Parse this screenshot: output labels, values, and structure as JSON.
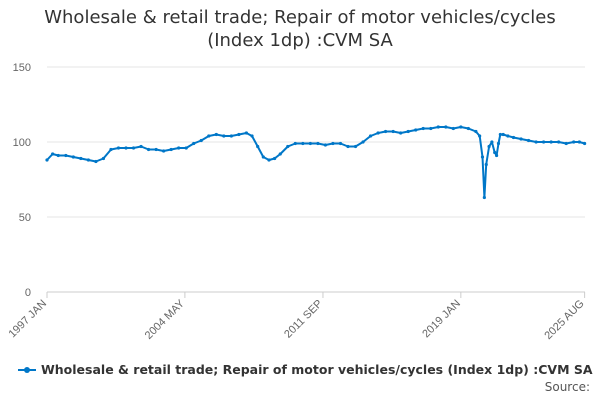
{
  "chart_data": {
    "type": "line",
    "title_line1": "Wholesale & retail trade; Repair of motor vehicles/cycles",
    "title_line2": "(Index 1dp) :CVM SA",
    "xlabel": "",
    "ylabel": "",
    "ylim": [
      0,
      150
    ],
    "yticks": [
      0,
      50,
      100,
      150
    ],
    "xlim": [
      1997.0,
      2025.6
    ],
    "xticks": [
      {
        "label": "1997 JAN",
        "x": 1997.0
      },
      {
        "label": "2004 MAY",
        "x": 2004.33
      },
      {
        "label": "2011 SEP",
        "x": 2011.67
      },
      {
        "label": "2019 JAN",
        "x": 2019.0
      },
      {
        "label": "2025 AUG",
        "x": 2025.58
      }
    ],
    "grid": true,
    "legend_position": "bottom",
    "color": "#0077c8",
    "series": [
      {
        "name": "Wholesale & retail trade; Repair of motor vehicles/cycles (Index 1dp) :CVM SA",
        "x": [
          1997.0,
          1997.3,
          1997.6,
          1998.0,
          1998.4,
          1998.8,
          1999.2,
          1999.6,
          2000.0,
          2000.4,
          2000.8,
          2001.2,
          2001.6,
          2002.0,
          2002.4,
          2002.8,
          2003.2,
          2003.6,
          2004.0,
          2004.4,
          2004.8,
          2005.2,
          2005.6,
          2006.0,
          2006.4,
          2006.8,
          2007.2,
          2007.6,
          2007.9,
          2008.2,
          2008.5,
          2008.8,
          2009.1,
          2009.4,
          2009.8,
          2010.2,
          2010.6,
          2011.0,
          2011.4,
          2011.8,
          2012.2,
          2012.6,
          2013.0,
          2013.4,
          2013.8,
          2014.2,
          2014.6,
          2015.0,
          2015.4,
          2015.8,
          2016.2,
          2016.6,
          2017.0,
          2017.4,
          2017.8,
          2018.2,
          2018.6,
          2019.0,
          2019.4,
          2019.8,
          2020.0,
          2020.15,
          2020.25,
          2020.35,
          2020.5,
          2020.65,
          2020.8,
          2020.9,
          2021.0,
          2021.1,
          2021.25,
          2021.5,
          2021.8,
          2022.2,
          2022.6,
          2023.0,
          2023.4,
          2023.8,
          2024.2,
          2024.6,
          2025.0,
          2025.3,
          2025.58
        ],
        "values": [
          88,
          92,
          91,
          91,
          90,
          89,
          88,
          87,
          89,
          95,
          96,
          96,
          96,
          97,
          95,
          95,
          94,
          95,
          96,
          96,
          99,
          101,
          104,
          105,
          104,
          104,
          105,
          106,
          104,
          97,
          90,
          88,
          89,
          92,
          97,
          99,
          99,
          99,
          99,
          98,
          99,
          99,
          97,
          97,
          100,
          104,
          106,
          107,
          107,
          106,
          107,
          108,
          109,
          109,
          110,
          110,
          109,
          110,
          109,
          107,
          104,
          90,
          63,
          85,
          97,
          100,
          93,
          91,
          99,
          105,
          105,
          104,
          103,
          102,
          101,
          100,
          100,
          100,
          100,
          99,
          100,
          100,
          99
        ]
      }
    ]
  },
  "source": {
    "label": "Source:"
  }
}
